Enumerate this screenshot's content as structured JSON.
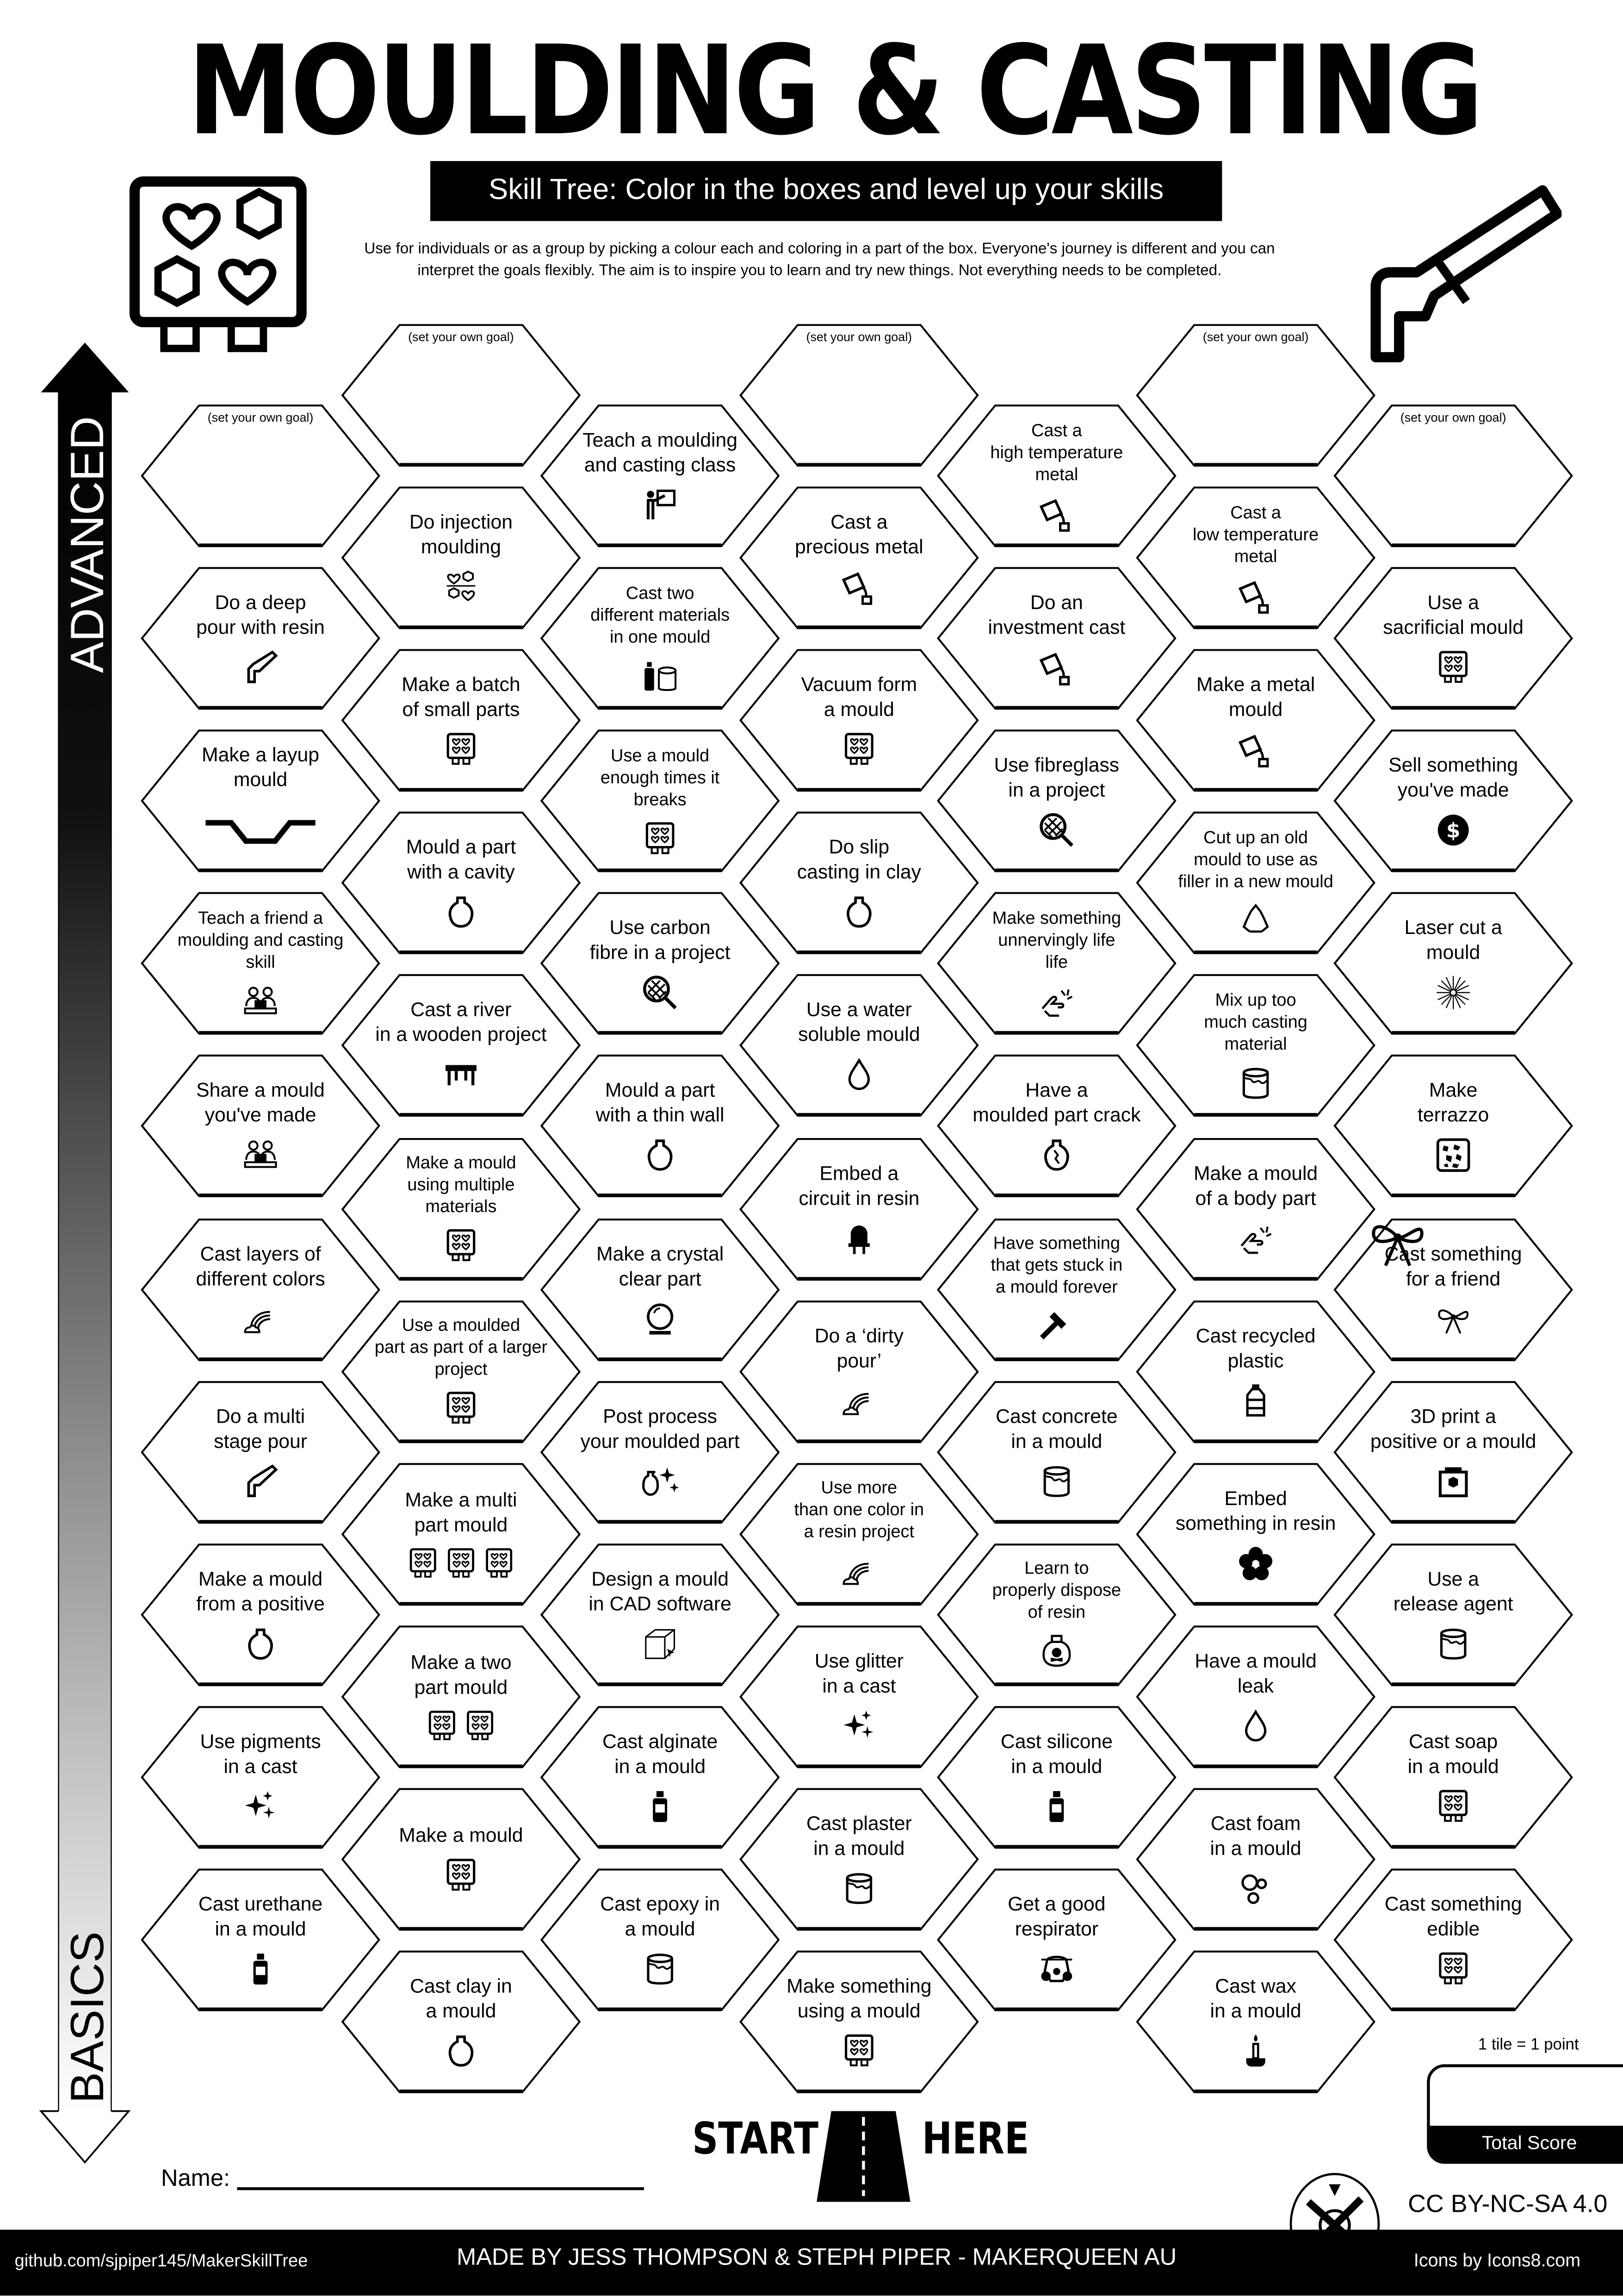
{
  "header": {
    "title": "MOULDING & CASTING",
    "subtitle": "Skill Tree:  Color in the boxes and level up your skills",
    "description_line1": "Use for individuals or as a group by picking a colour each and coloring in a part of the box.  Everyone's journey is different and you can",
    "description_line2": "interpret the goals flexibly.  The aim is to inspire you to learn and try new things. Not everything needs to be completed.",
    "left_icon": "mould-tray-icon",
    "right_icon": "hot-glue-gun-icon"
  },
  "axis": {
    "top_label": "ADVANCED",
    "bottom_label": "BASICS"
  },
  "tree": {
    "columns": [
      [
        {
          "label": "(set your own goal)",
          "goal": true
        },
        {
          "label": "Do a deep\npour with resin",
          "icon": "glue-gun"
        },
        {
          "label": "Make a layup\nmould",
          "icon": "layup"
        },
        {
          "label": "Teach a friend a\nmoulding and casting\nskill",
          "icon": "people-laptop"
        },
        {
          "label": "Share a mould\nyou've made",
          "icon": "people-laptop"
        },
        {
          "label": "Cast layers of\ndifferent colors",
          "icon": "rainbow"
        },
        {
          "label": "Do a multi\nstage pour",
          "icon": "glue-gun"
        },
        {
          "label": "Make a mould\nfrom a positive",
          "icon": "vase"
        },
        {
          "label": "Use pigments\nin a cast",
          "icon": "sparkles"
        },
        {
          "label": "Cast urethane\nin a mould",
          "icon": "bottle"
        }
      ],
      [
        {
          "label": "(set your own goal)",
          "goal": true
        },
        {
          "label": "Do injection\nmoulding",
          "icon": "hearts"
        },
        {
          "label": "Make a batch\nof small parts",
          "icon": "tray"
        },
        {
          "label": "Mould a part\nwith a cavity",
          "icon": "vase"
        },
        {
          "label": "Cast a river\nin a wooden project",
          "icon": "table"
        },
        {
          "label": "Make a mould\nusing multiple\nmaterials",
          "icon": "tray"
        },
        {
          "label": "Use a moulded\npart as part of a larger\nproject",
          "icon": "tray"
        },
        {
          "label": "Make a  multi\npart mould",
          "icon": "tray",
          "icon_count": 3
        },
        {
          "label": "Make a two\npart mould",
          "icon": "tray",
          "icon_count": 2
        },
        {
          "label": "Make a mould",
          "icon": "tray"
        },
        {
          "label": "Cast clay in\na mould",
          "icon": "vase"
        }
      ],
      [
        {
          "label": "Teach a moulding\nand casting class",
          "icon": "teacher"
        },
        {
          "label": "Cast two\ndifferent materials\nin one mould",
          "icon": "bottle-can"
        },
        {
          "label": "Use a mould\nenough times it\nbreaks",
          "icon": "tray"
        },
        {
          "label": "Use carbon\nfibre in a project",
          "icon": "fibre"
        },
        {
          "label": "Mould a part\nwith a thin wall",
          "icon": "vase"
        },
        {
          "label": "Make a crystal\nclear part",
          "icon": "crystal-ball"
        },
        {
          "label": "Post process\nyour moulded part",
          "icon": "vase-sparkles"
        },
        {
          "label": "Design a mould\nin CAD software",
          "icon": "cad"
        },
        {
          "label": "Cast alginate\nin a mould",
          "icon": "bottle"
        },
        {
          "label": "Cast epoxy in\na mould",
          "icon": "can"
        }
      ],
      [
        {
          "label": "(set your own goal)",
          "goal": true
        },
        {
          "label": "Cast a\nprecious metal",
          "icon": "pour"
        },
        {
          "label": "Vacuum form\na mould",
          "icon": "tray"
        },
        {
          "label": "Do slip\ncasting in clay",
          "icon": "vase"
        },
        {
          "label": "Use a water\nsoluble mould",
          "icon": "drop"
        },
        {
          "label": "Embed a\ncircuit in resin",
          "icon": "led"
        },
        {
          "label": "Do a ‘dirty\npour’",
          "icon": "rainbow"
        },
        {
          "label": "Use more\nthan one color in\na resin project",
          "icon": "rainbow"
        },
        {
          "label": "Use glitter\nin a cast",
          "icon": "sparkles"
        },
        {
          "label": "Cast plaster\nin a mould",
          "icon": "can"
        },
        {
          "label": "Make something\nusing a mould",
          "icon": "tray"
        }
      ],
      [
        {
          "label": "Cast a\nhigh temperature\nmetal",
          "icon": "pour"
        },
        {
          "label": "Do an\ninvestment cast",
          "icon": "pour"
        },
        {
          "label": "Use fibreglass\nin a project",
          "icon": "fibre"
        },
        {
          "label": "Make something\nunnervingly life\nlife",
          "icon": "hand"
        },
        {
          "label": "Have a\nmoulded part crack",
          "icon": "cracked-vase"
        },
        {
          "label": "Have something\nthat gets stuck in\na mould forever",
          "icon": "hammer"
        },
        {
          "label": "Cast concrete\nin a mould",
          "icon": "can"
        },
        {
          "label": "Learn to\nproperly dispose\nof resin",
          "icon": "poison"
        },
        {
          "label": "Cast silicone\nin a mould",
          "icon": "bottle"
        },
        {
          "label": "Get a good\nrespirator",
          "icon": "respirator"
        }
      ],
      [
        {
          "label": "(set your own goal)",
          "goal": true
        },
        {
          "label": "Cast a\nlow temperature\nmetal",
          "icon": "pour"
        },
        {
          "label": "Make a metal\nmould",
          "icon": "pour"
        },
        {
          "label": "Cut up an old\nmould to use as\nfiller in a new mould",
          "icon": "recycle"
        },
        {
          "label": "Mix up too\nmuch casting\nmaterial",
          "icon": "can"
        },
        {
          "label": "Make a mould\nof a body part",
          "icon": "hand"
        },
        {
          "label": "Cast recycled\nplastic",
          "icon": "plastic-bottle"
        },
        {
          "label": "Embed\nsomething in resin",
          "icon": "flower"
        },
        {
          "label": "Have a mould\nleak",
          "icon": "drop"
        },
        {
          "label": "Cast foam\nin a mould",
          "icon": "bubbles"
        },
        {
          "label": "Cast wax\nin a mould",
          "icon": "candle"
        }
      ],
      [
        {
          "label": "(set your own goal)",
          "goal": true
        },
        {
          "label": "Use a\nsacrificial mould",
          "icon": "tray"
        },
        {
          "label": "Sell something\nyou've made",
          "icon": "dollar"
        },
        {
          "label": "Laser cut a\nmould",
          "icon": "laser"
        },
        {
          "label": "Make\nterrazzo",
          "icon": "terrazzo"
        },
        {
          "label": "Cast something\nfor a friend",
          "icon": "gift-bow"
        },
        {
          "label": "3D print a\npositive or a mould",
          "icon": "printer"
        },
        {
          "label": "Use a\nrelease agent",
          "icon": "can"
        },
        {
          "label": "Cast soap\nin a mould",
          "icon": "tray"
        },
        {
          "label": "Cast something\nedible",
          "icon": "tray"
        }
      ]
    ]
  },
  "bottom": {
    "start": "START",
    "here": "HERE",
    "name_label": "Name:",
    "score_note": "1 tile = 1 point",
    "total_score": "Total Score",
    "license": "CC BY-NC-SA 4.0"
  },
  "footer": {
    "repo": "github.com/sjpiper145/MakerSkillTree",
    "credits": "MADE BY JESS THOMPSON & STEPH PIPER  -  MAKERQUEEN AU",
    "icons_credit": "Icons by Icons8.com"
  }
}
